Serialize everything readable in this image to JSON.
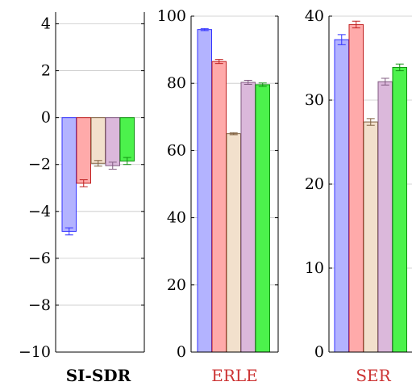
{
  "colors": {
    "fills": [
      "#b3b3ff",
      "#ffaaaa",
      "#f2e0cc",
      "#dbb8db",
      "#4cf24c"
    ],
    "strokes": [
      "#3333ff",
      "#c02020",
      "#806040",
      "#805a80",
      "#109010"
    ],
    "title_colors": [
      "#000000",
      "#cc3333",
      "#cc3333"
    ]
  },
  "chart_data": [
    {
      "type": "bar",
      "title": "SI-SDR",
      "ylim": [
        -10,
        4.5
      ],
      "yticks": [
        "4",
        "2",
        "0",
        "−2",
        "−4",
        "−6",
        "−8",
        "−10"
      ],
      "ytick_values": [
        4,
        2,
        0,
        -2,
        -4,
        -6,
        -8,
        -10
      ],
      "grid": true,
      "values": [
        -4.85,
        -2.8,
        -1.95,
        -2.05,
        -1.85
      ],
      "errors": [
        0.15,
        0.15,
        0.12,
        0.15,
        0.15
      ]
    },
    {
      "type": "bar",
      "title": "ERLE",
      "ylim": [
        0,
        100
      ],
      "yticks": [
        "100",
        "80",
        "60",
        "40",
        "20",
        "0"
      ],
      "ytick_values": [
        100,
        80,
        60,
        40,
        20,
        0
      ],
      "grid": true,
      "values": [
        96.0,
        86.5,
        65.0,
        80.3,
        79.6
      ],
      "errors": [
        0.3,
        0.6,
        0.3,
        0.6,
        0.5
      ]
    },
    {
      "type": "bar",
      "title": "SER",
      "ylim": [
        0,
        40
      ],
      "yticks": [
        "40",
        "30",
        "20",
        "10",
        "0"
      ],
      "ytick_values": [
        40,
        30,
        20,
        10,
        0
      ],
      "grid": true,
      "values": [
        37.2,
        39.0,
        27.4,
        32.2,
        33.9
      ],
      "errors": [
        0.6,
        0.4,
        0.4,
        0.4,
        0.4
      ]
    }
  ]
}
